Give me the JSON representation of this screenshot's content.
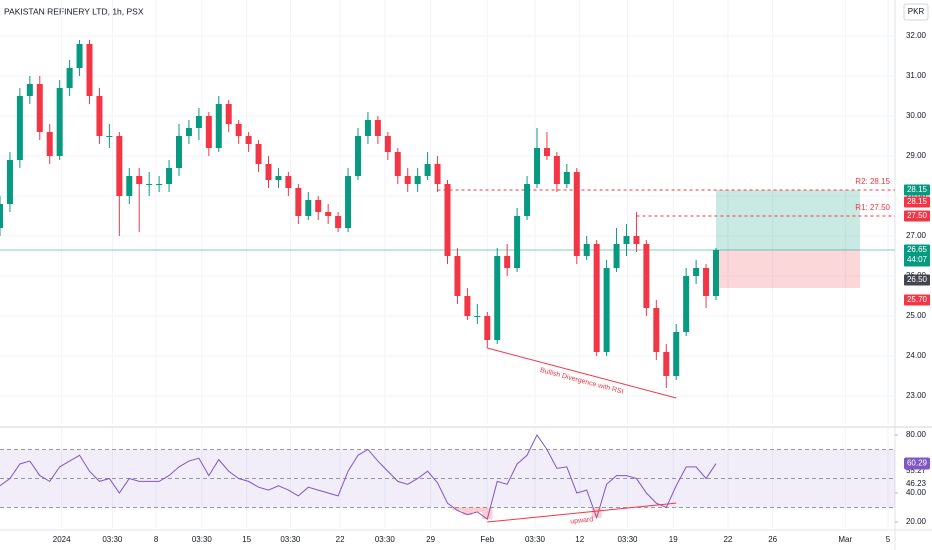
{
  "chart_data": {
    "type": "candlestick",
    "title": "PAKISTAN REFINERY LTD, 1h, PSX",
    "currency": "PKR",
    "x": [
      0,
      1,
      2,
      3,
      4,
      5,
      6,
      7,
      8,
      9,
      10,
      11,
      12,
      13,
      14,
      15,
      16,
      17,
      18,
      19,
      20,
      21,
      22,
      23,
      24,
      25,
      26,
      27,
      28,
      29,
      30,
      31,
      32,
      33,
      34,
      35,
      36,
      37,
      38,
      39,
      40,
      41,
      42,
      43,
      44,
      45,
      46,
      47,
      48,
      49,
      50,
      51,
      52,
      53,
      54,
      55,
      56,
      57,
      58,
      59,
      60,
      61,
      62,
      63,
      64,
      65,
      66,
      67,
      68,
      69,
      70,
      71,
      72
    ],
    "open": [
      27.2,
      27.8,
      28.9,
      30.5,
      30.8,
      29.6,
      29.0,
      30.7,
      31.2,
      31.8,
      30.5,
      29.5,
      29.5,
      28.0,
      28.5,
      28.3,
      28.3,
      28.3,
      28.7,
      29.5,
      29.7,
      30.0,
      29.2,
      30.3,
      29.8,
      29.5,
      29.3,
      28.8,
      28.4,
      28.5,
      28.2,
      27.5,
      27.9,
      27.6,
      27.5,
      27.2,
      28.5,
      29.5,
      29.9,
      29.5,
      29.1,
      28.5,
      28.3,
      28.5,
      28.8,
      28.3,
      26.5,
      25.5,
      25.0,
      25.0,
      24.4,
      26.5,
      26.2,
      27.5,
      28.3,
      29.2,
      29.0,
      28.3,
      28.6,
      26.5,
      26.8,
      24.1,
      26.2,
      26.8,
      27.0,
      26.8,
      25.2,
      24.1,
      23.5,
      24.6,
      26.0,
      26.2,
      25.5
    ],
    "high": [
      28.0,
      29.1,
      30.7,
      31.0,
      31.0,
      29.8,
      30.9,
      31.4,
      31.9,
      31.9,
      30.7,
      29.8,
      29.6,
      28.7,
      28.7,
      28.6,
      28.5,
      28.9,
      29.8,
      29.9,
      30.2,
      30.1,
      30.5,
      30.4,
      29.9,
      29.6,
      29.4,
      29.0,
      28.7,
      28.6,
      28.3,
      28.1,
      28.0,
      27.8,
      27.6,
      28.7,
      29.7,
      30.1,
      30.0,
      29.6,
      29.2,
      28.7,
      28.7,
      29.1,
      29.0,
      28.4,
      26.7,
      25.7,
      25.3,
      25.1,
      26.7,
      26.8,
      27.7,
      28.5,
      29.7,
      29.6,
      29.1,
      28.8,
      28.7,
      27.0,
      26.9,
      26.4,
      27.2,
      27.3,
      27.6,
      26.9,
      25.4,
      24.3,
      24.8,
      26.2,
      26.4,
      26.3,
      26.7
    ],
    "low": [
      27.0,
      27.6,
      28.7,
      30.3,
      29.4,
      28.8,
      28.9,
      30.5,
      31.0,
      30.3,
      29.3,
      29.2,
      27.0,
      27.8,
      27.1,
      28.0,
      28.1,
      28.1,
      28.5,
      29.3,
      29.4,
      29.0,
      29.1,
      29.6,
      29.3,
      29.1,
      28.6,
      28.2,
      28.2,
      28.0,
      27.3,
      27.4,
      27.4,
      27.3,
      27.1,
      27.1,
      28.4,
      29.3,
      29.3,
      28.9,
      28.3,
      28.1,
      28.1,
      28.4,
      28.1,
      26.3,
      25.3,
      24.9,
      24.8,
      24.2,
      24.3,
      26.0,
      26.1,
      27.4,
      28.2,
      28.9,
      28.1,
      28.2,
      26.3,
      26.4,
      24.0,
      24.0,
      26.1,
      26.5,
      26.6,
      25.0,
      23.9,
      23.2,
      23.4,
      24.5,
      25.8,
      25.2,
      25.4
    ],
    "close": [
      27.8,
      28.9,
      30.5,
      30.8,
      29.6,
      29.0,
      30.7,
      31.2,
      31.8,
      30.5,
      29.5,
      29.5,
      28.0,
      28.5,
      28.3,
      28.3,
      28.3,
      28.7,
      29.5,
      29.7,
      30.0,
      29.2,
      30.3,
      29.8,
      29.5,
      29.3,
      28.8,
      28.4,
      28.5,
      28.2,
      27.5,
      27.9,
      27.6,
      27.5,
      27.2,
      28.5,
      29.5,
      29.9,
      29.5,
      29.1,
      28.5,
      28.3,
      28.5,
      28.8,
      28.3,
      26.5,
      25.5,
      25.0,
      25.0,
      24.4,
      26.5,
      26.2,
      27.5,
      28.3,
      29.2,
      29.0,
      28.3,
      28.6,
      26.5,
      26.8,
      24.1,
      26.2,
      26.8,
      27.0,
      26.8,
      25.2,
      24.1,
      23.5,
      24.6,
      26.0,
      26.2,
      25.5,
      26.65
    ],
    "up_color": "#089981",
    "down_color": "#f23645",
    "xlim": [
      0,
      90
    ],
    "xticks": [
      {
        "value": 6.2,
        "label": "2024"
      },
      {
        "value": 11.3,
        "label": "03:30"
      },
      {
        "value": 15.7,
        "label": "8"
      },
      {
        "value": 20.3,
        "label": "03:30"
      },
      {
        "value": 24.8,
        "label": "15"
      },
      {
        "value": 29.2,
        "label": "03:30"
      },
      {
        "value": 34.2,
        "label": "22"
      },
      {
        "value": 38.7,
        "label": "03:30"
      },
      {
        "value": 43.3,
        "label": "29"
      },
      {
        "value": 49,
        "label": "Feb"
      },
      {
        "value": 53.8,
        "label": "03:30"
      },
      {
        "value": 58.3,
        "label": "12"
      },
      {
        "value": 63.1,
        "label": "03:30"
      },
      {
        "value": 67.7,
        "label": "19"
      },
      {
        "value": 73.2,
        "label": "22"
      },
      {
        "value": 77.7,
        "label": "26"
      },
      {
        "value": 85,
        "label": "Mar"
      },
      {
        "value": 89.3,
        "label": "5"
      }
    ],
    "ylim": [
      22.3,
      32.9
    ],
    "yticks": [
      {
        "value": 23,
        "label": "23.00"
      },
      {
        "value": 24,
        "label": "24.00"
      },
      {
        "value": 25,
        "label": "25.00"
      },
      {
        "value": 26,
        "label": "26.00"
      },
      {
        "value": 27,
        "label": "27.00"
      },
      {
        "value": 28,
        "label": "28.00"
      },
      {
        "value": 29,
        "label": "29.00"
      },
      {
        "value": 30,
        "label": "30.00"
      },
      {
        "value": 31,
        "label": "31.00"
      },
      {
        "value": 32,
        "label": "32.00"
      }
    ],
    "levels": [
      {
        "name": "R2: 28.15",
        "value": 28.15,
        "start": 44
      },
      {
        "name": "R1: 27.50",
        "value": 27.5,
        "start": 64
      }
    ],
    "position": {
      "entry": 26.65,
      "target": 28.15,
      "stop": 25.7,
      "start": 72
    },
    "price_badges": [
      {
        "value": 28.15,
        "label": "28.15",
        "color": "#089981"
      },
      {
        "value": 28.15,
        "label": "28.15",
        "color": "#f23645"
      },
      {
        "value": 27.5,
        "label": "27.50",
        "color": "#f23645"
      },
      {
        "value": 26.65,
        "label": "26.65",
        "color": "#089981"
      },
      {
        "value": 26.5,
        "label": "26.50",
        "color": "#434651"
      },
      {
        "value": 25.7,
        "label": "25.70",
        "color": "#f23645"
      }
    ],
    "countdown": "44:07",
    "annotations": [
      {
        "text": "Bullish Divergence with RSI",
        "x": [
          49,
          68
        ],
        "y": [
          24.2,
          22.95
        ],
        "pane": "price"
      },
      {
        "text": "upward",
        "x": [
          49,
          68
        ],
        "y": [
          20,
          33
        ],
        "pane": "rsi"
      }
    ],
    "rsi": {
      "values": [
        45,
        50,
        60,
        62,
        52,
        48,
        58,
        62,
        66,
        55,
        48,
        50,
        40,
        50,
        48,
        48,
        48,
        52,
        58,
        62,
        64,
        52,
        63,
        55,
        50,
        48,
        44,
        42,
        45,
        42,
        38,
        44,
        42,
        40,
        38,
        55,
        66,
        70,
        62,
        55,
        48,
        46,
        50,
        55,
        47,
        33,
        28,
        25,
        27,
        22,
        48,
        46,
        60,
        66,
        80,
        70,
        57,
        58,
        40,
        42,
        23,
        46,
        52,
        52,
        50,
        40,
        33,
        30,
        45,
        58,
        58,
        50,
        60.29
      ],
      "color": "#7e57c2",
      "ylim": [
        14.5,
        84.8
      ],
      "yticks": [
        {
          "value": 80,
          "label": "80.00"
        },
        {
          "value": 40,
          "label": "40.00"
        },
        {
          "value": 20,
          "label": "20.00"
        }
      ],
      "band": [
        30,
        70
      ],
      "midline": 50,
      "last": {
        "value": 60.29,
        "label": "60.29"
      },
      "other_labels": [
        55.27,
        46.23
      ]
    }
  }
}
